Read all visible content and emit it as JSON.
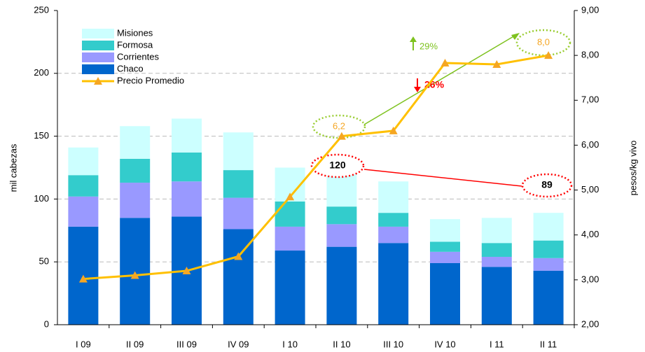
{
  "chart_data": {
    "type": "bar",
    "stacked": true,
    "categories": [
      "I 09",
      "II 09",
      "III 09",
      "IV 09",
      "I 10",
      "II 10",
      "III 10",
      "IV 10",
      "I 11",
      "II 11"
    ],
    "y_label": "mil cabezas",
    "y2_label": "pesos/kg vivo",
    "ylim": [
      0,
      250
    ],
    "yticks": [
      0,
      50,
      100,
      150,
      200,
      250
    ],
    "y2lim": [
      2,
      9
    ],
    "y2ticks": [
      {
        "value": 2,
        "label": "2,00"
      },
      {
        "value": 3,
        "label": "3,00"
      },
      {
        "value": 4,
        "label": "4,00"
      },
      {
        "value": 5,
        "label": "5,00"
      },
      {
        "value": 6,
        "label": "6,00"
      },
      {
        "value": 7,
        "label": "7,00"
      },
      {
        "value": 8,
        "label": "8,00"
      },
      {
        "value": 9,
        "label": "9,00"
      }
    ],
    "grid": true,
    "legend": "top-left",
    "series": [
      {
        "name": "Chaco",
        "color": "#0066cc",
        "values": [
          78,
          85,
          86,
          76,
          59,
          62,
          65,
          49,
          46,
          43
        ]
      },
      {
        "name": "Corrientes",
        "color": "#9999ff",
        "values": [
          24,
          28,
          28,
          25,
          19,
          18,
          13,
          9,
          8,
          10
        ]
      },
      {
        "name": "Formosa",
        "color": "#33cccc",
        "values": [
          17,
          19,
          23,
          22,
          20,
          14,
          11,
          8,
          11,
          14
        ]
      },
      {
        "name": "Misiones",
        "color": "#ccffff",
        "values": [
          22,
          26,
          27,
          30,
          27,
          26,
          25,
          18,
          20,
          22
        ]
      },
      {
        "name": "Precio Promedio",
        "type": "line",
        "axis": "y2",
        "color": "#ffc000",
        "marker_color": "#f5a623",
        "values": [
          3.02,
          3.1,
          3.2,
          3.52,
          4.85,
          6.2,
          6.32,
          7.83,
          7.8,
          8.0
        ]
      }
    ],
    "annotations": [
      {
        "text": "6,2",
        "color": "#f5a623"
      },
      {
        "text": "8,0",
        "color": "#f5a623"
      },
      {
        "text": "120",
        "color": "#000000"
      },
      {
        "text": "89",
        "color": "#000000"
      },
      {
        "text": "29%",
        "color": "#7ec21f"
      },
      {
        "text": "26%",
        "color": "#ff0000"
      }
    ]
  }
}
